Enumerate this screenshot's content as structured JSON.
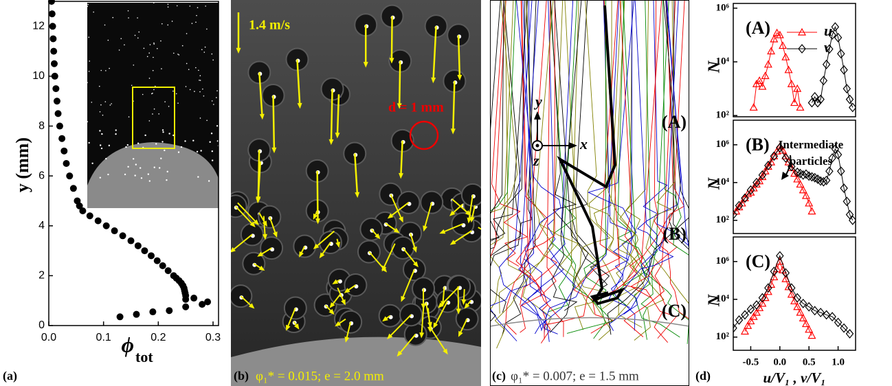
{
  "chart_data": [
    {
      "type": "scatter",
      "panel_label": "(a)",
      "xlabel": "ϕ",
      "xlabel_sub": "tot",
      "ylabel": "y (mm)",
      "color": "#000000",
      "xlim": [
        0,
        0.31
      ],
      "ylim": [
        0,
        13
      ],
      "xticks": [
        {
          "value": 0,
          "label": "0.0"
        },
        0.1,
        0.2,
        0.3
      ],
      "yticks": [
        0,
        2,
        4,
        6,
        8,
        10,
        12
      ],
      "x": [
        0.005,
        0.006,
        0.007,
        0.008,
        0.009,
        0.01,
        0.011,
        0.013,
        0.015,
        0.017,
        0.02,
        0.024,
        0.028,
        0.032,
        0.038,
        0.045,
        0.052,
        0.056,
        0.062,
        0.075,
        0.09,
        0.105,
        0.12,
        0.135,
        0.15,
        0.163,
        0.175,
        0.187,
        0.198,
        0.208,
        0.218,
        0.228,
        0.233,
        0.238,
        0.242,
        0.245,
        0.247,
        0.248,
        0.249,
        0.25,
        0.25,
        0.265,
        0.28,
        0.29,
        0.25,
        0.22,
        0.19,
        0.16,
        0.13
      ],
      "values": [
        13,
        12.5,
        12,
        11.5,
        11,
        10.5,
        10,
        9.5,
        9,
        8.5,
        8,
        7.5,
        7,
        6.5,
        6,
        5.5,
        5,
        4.8,
        4.6,
        4.4,
        4.2,
        4.0,
        3.8,
        3.6,
        3.4,
        3.2,
        3.0,
        2.8,
        2.6,
        2.4,
        2.2,
        2.0,
        1.9,
        1.8,
        1.7,
        1.6,
        1.5,
        1.4,
        1.3,
        1.2,
        1.05,
        1.1,
        0.85,
        0.95,
        0.75,
        0.6,
        0.55,
        0.45,
        0.35
      ]
    },
    {
      "type": "line",
      "panel_label": "(A)",
      "ylabel": "N",
      "log_y": true,
      "xlim": [
        -0.8,
        1.3
      ],
      "ylim": [
        90,
        1500000
      ],
      "yticks": [
        {
          "value": 100,
          "label": "10²"
        },
        {
          "value": 10000,
          "label": "10⁴"
        },
        {
          "value": 1000000,
          "label": "10⁶"
        }
      ],
      "legend": "upper right",
      "series": [
        {
          "name": "u",
          "color": "#ff0000",
          "marker": "triangle",
          "x": [
            -0.45,
            -0.4,
            -0.35,
            -0.3,
            -0.25,
            -0.2,
            -0.15,
            -0.1,
            -0.05,
            0,
            0.05,
            0.1,
            0.15,
            0.2,
            0.25,
            0.3,
            0.35
          ],
          "values": [
            200,
            1500,
            2000,
            1200,
            3000,
            8000,
            25000,
            70000,
            120000,
            100000,
            40000,
            15000,
            5000,
            1500,
            300,
            1000,
            200
          ]
        },
        {
          "name": "v",
          "color": "#000000",
          "marker": "diamond",
          "x": [
            0.55,
            0.6,
            0.65,
            0.7,
            0.75,
            0.8,
            0.85,
            0.9,
            0.95,
            1.0,
            1.05,
            1.1,
            1.15,
            1.2,
            1.25
          ],
          "values": [
            300,
            500,
            300,
            400,
            2000,
            8000,
            30000,
            100000,
            200000,
            80000,
            20000,
            5000,
            1000,
            400,
            200
          ]
        }
      ]
    },
    {
      "type": "line",
      "panel_label": "(B)",
      "ylabel": "N",
      "log_y": true,
      "xlim": [
        -0.8,
        1.3
      ],
      "ylim": [
        20,
        20000000
      ],
      "yticks": [
        {
          "value": 100,
          "label": "10²"
        },
        {
          "value": 10000,
          "label": "10⁴"
        },
        {
          "value": 1000000,
          "label": "10⁶"
        }
      ],
      "annotation": [
        "Intermediate",
        "particles"
      ],
      "series": [
        {
          "name": "u",
          "color": "#ff0000",
          "marker": "triangle",
          "x": [
            -0.75,
            -0.7,
            -0.65,
            -0.6,
            -0.55,
            -0.5,
            -0.45,
            -0.4,
            -0.35,
            -0.3,
            -0.25,
            -0.2,
            -0.15,
            -0.1,
            -0.05,
            0,
            0.05,
            0.1,
            0.15,
            0.2,
            0.25,
            0.3,
            0.35,
            0.4,
            0.45,
            0.5,
            0.55
          ],
          "values": [
            300,
            500,
            800,
            1500,
            2500,
            3000,
            5000,
            8000,
            12000,
            20000,
            40000,
            70000,
            120000,
            250000,
            450000,
            800000,
            500000,
            250000,
            120000,
            60000,
            30000,
            15000,
            8000,
            4000,
            2000,
            800,
            300
          ]
        },
        {
          "name": "v",
          "color": "#000000",
          "marker": "diamond",
          "x": [
            -0.8,
            -0.7,
            -0.6,
            -0.5,
            -0.4,
            -0.3,
            -0.2,
            -0.1,
            0,
            0.1,
            0.2,
            0.3,
            0.35,
            0.4,
            0.45,
            0.5,
            0.55,
            0.6,
            0.65,
            0.7,
            0.75,
            0.8,
            0.85,
            0.9,
            0.95,
            1.0,
            1.05,
            1.1,
            1.15,
            1.2,
            1.25
          ],
          "values": [
            200,
            600,
            1500,
            4000,
            10000,
            25000,
            80000,
            250000,
            700000,
            200000,
            70000,
            35000,
            30000,
            25000,
            28000,
            22000,
            20000,
            18000,
            15000,
            12000,
            11000,
            13000,
            40000,
            200000,
            600000,
            300000,
            40000,
            5000,
            1000,
            200,
            100
          ]
        }
      ]
    },
    {
      "type": "line",
      "panel_label": "(C)",
      "figure_label": "(d)",
      "ylabel": "N",
      "xlabel": "u/V₁ , v/V₁",
      "log_y": true,
      "xlim": [
        -0.8,
        1.3
      ],
      "ylim": [
        20,
        20000000
      ],
      "yticks": [
        {
          "value": 100,
          "label": "10²"
        },
        {
          "value": 10000,
          "label": "10⁴"
        },
        {
          "value": 1000000,
          "label": "10⁶"
        }
      ],
      "xticks": [
        -0.5,
        {
          "value": 0,
          "label": "0.0"
        },
        0.5,
        {
          "value": 1,
          "label": "1.0"
        }
      ],
      "series": [
        {
          "name": "u",
          "color": "#ff0000",
          "marker": "triangle",
          "x": [
            -0.6,
            -0.55,
            -0.5,
            -0.45,
            -0.4,
            -0.35,
            -0.3,
            -0.25,
            -0.2,
            -0.15,
            -0.1,
            -0.05,
            0,
            0.05,
            0.1,
            0.15,
            0.2,
            0.25,
            0.3,
            0.35,
            0.4,
            0.45,
            0.5,
            0.55
          ],
          "values": [
            200,
            400,
            700,
            1200,
            2000,
            3500,
            6000,
            12000,
            25000,
            60000,
            150000,
            400000,
            1000000,
            350000,
            120000,
            45000,
            18000,
            8000,
            4000,
            2000,
            1000,
            500,
            250,
            120
          ]
        },
        {
          "name": "v",
          "color": "#000000",
          "marker": "diamond",
          "x": [
            -0.8,
            -0.7,
            -0.6,
            -0.5,
            -0.4,
            -0.3,
            -0.2,
            -0.1,
            0,
            0.1,
            0.2,
            0.3,
            0.4,
            0.5,
            0.6,
            0.7,
            0.8,
            0.9,
            1.0,
            1.1,
            1.2
          ],
          "values": [
            300,
            800,
            1500,
            3000,
            5000,
            12000,
            40000,
            300000,
            2000000,
            250000,
            40000,
            12000,
            6000,
            4000,
            2500,
            2000,
            1500,
            1200,
            600,
            300,
            150
          ]
        }
      ]
    }
  ],
  "photo_b": {
    "panel_label": "(b)",
    "caption": "φ₁* = 0.015; e = 2.0 mm",
    "speed_label": "1.4 m/s",
    "diameter_label": "d = 1 mm"
  },
  "trajectories_c": {
    "panel_label": "(c)",
    "caption": "φ₁* = 0.007; e = 1.5 mm",
    "axis_y": "y",
    "axis_x": "x",
    "axis_z": "z",
    "regions": [
      "(A)",
      "(B)",
      "(C)"
    ]
  }
}
